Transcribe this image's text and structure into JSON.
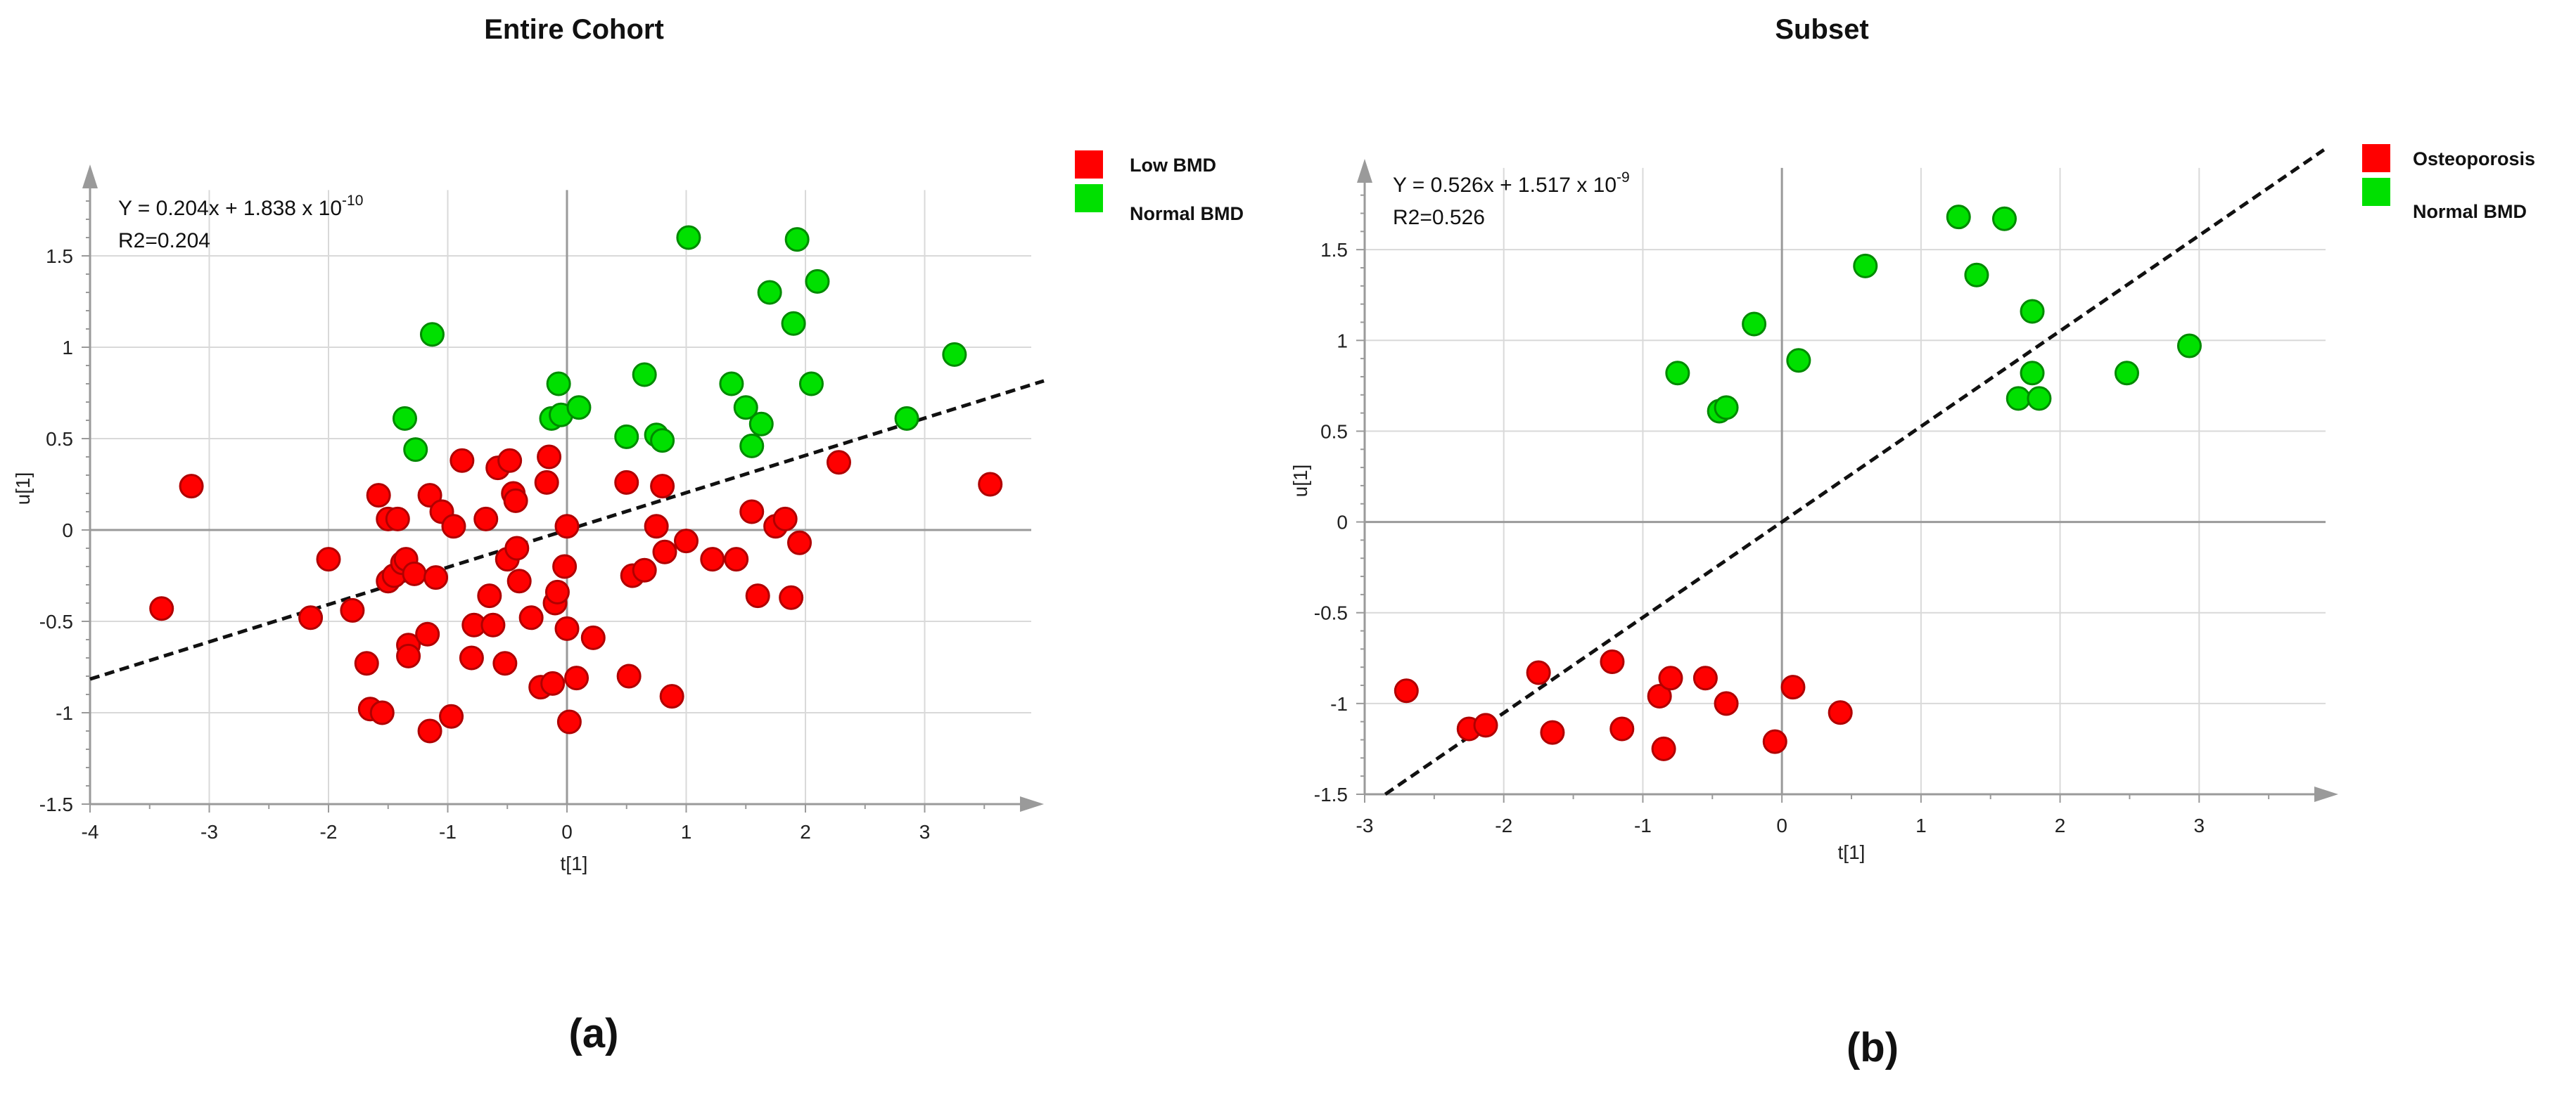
{
  "colors": {
    "low": "#ff0000",
    "low_edge": "#b00000",
    "normal": "#00e000",
    "normal_edge": "#008a00",
    "fit_line": "#111111",
    "grid": "#d9d9d9",
    "axis": "#9a9a9a"
  },
  "chart_data": [
    {
      "type": "scatter",
      "panel_label": "(a)",
      "title": "Entire Cohort",
      "xlabel": "t[1]",
      "ylabel": "u[1]",
      "xlim": [
        -4,
        4
      ],
      "ylim": [
        -1.5,
        2
      ],
      "xticks": [
        -4,
        -3,
        -2,
        -1,
        0,
        1,
        2,
        3
      ],
      "yticks": [
        -1.5,
        -1,
        -0.5,
        0,
        0.5,
        1,
        1.5
      ],
      "xtick_labels": [
        "-4",
        "-3",
        "-2",
        "-1",
        "0",
        "1",
        "2",
        "3"
      ],
      "ytick_labels": [
        "-1.5",
        "-1",
        "-0.5",
        "0",
        "0.5",
        "1",
        "1.5"
      ],
      "grid": true,
      "equation": {
        "prefix": "Y = 0.204x + 1.838  x 10",
        "exponent": "-10",
        "r2": "R2=0.204"
      },
      "fit": {
        "slope": 0.204,
        "intercept": 0
      },
      "legend": [
        {
          "label": "Low BMD",
          "color": "#ff0000"
        },
        {
          "label": "Normal BMD",
          "color": "#00e000"
        }
      ],
      "series": [
        {
          "name": "Low BMD",
          "color": "#ff0000",
          "points": [
            [
              -3.4,
              -0.43
            ],
            [
              -3.15,
              0.24
            ],
            [
              -2.15,
              -0.48
            ],
            [
              -2.0,
              -0.16
            ],
            [
              -1.8,
              -0.44
            ],
            [
              -1.68,
              -0.73
            ],
            [
              -1.65,
              -0.98
            ],
            [
              -1.58,
              0.19
            ],
            [
              -1.55,
              -1.0
            ],
            [
              -1.5,
              0.06
            ],
            [
              -1.5,
              -0.28
            ],
            [
              -1.45,
              -0.25
            ],
            [
              -1.42,
              0.06
            ],
            [
              -1.38,
              -0.18
            ],
            [
              -1.35,
              -0.16
            ],
            [
              -1.33,
              -0.63
            ],
            [
              -1.33,
              -0.69
            ],
            [
              -1.28,
              -0.24
            ],
            [
              -1.17,
              -0.57
            ],
            [
              -1.15,
              0.19
            ],
            [
              -1.15,
              -1.1
            ],
            [
              -1.1,
              -0.26
            ],
            [
              -1.05,
              0.1
            ],
            [
              -0.97,
              -1.02
            ],
            [
              -0.95,
              0.02
            ],
            [
              -0.88,
              0.38
            ],
            [
              -0.8,
              -0.7
            ],
            [
              -0.78,
              -0.52
            ],
            [
              -0.68,
              0.06
            ],
            [
              -0.65,
              -0.36
            ],
            [
              -0.62,
              -0.52
            ],
            [
              -0.58,
              0.34
            ],
            [
              -0.52,
              -0.73
            ],
            [
              -0.5,
              -0.16
            ],
            [
              -0.48,
              0.38
            ],
            [
              -0.45,
              0.2
            ],
            [
              -0.43,
              0.16
            ],
            [
              -0.42,
              -0.1
            ],
            [
              -0.4,
              -0.28
            ],
            [
              -0.3,
              -0.48
            ],
            [
              -0.22,
              -0.86
            ],
            [
              -0.17,
              0.26
            ],
            [
              -0.15,
              0.4
            ],
            [
              -0.12,
              -0.84
            ],
            [
              -0.1,
              -0.4
            ],
            [
              -0.08,
              -0.34
            ],
            [
              -0.02,
              -0.2
            ],
            [
              0.0,
              0.02
            ],
            [
              0.0,
              -0.54
            ],
            [
              0.02,
              -1.05
            ],
            [
              0.08,
              -0.81
            ],
            [
              0.22,
              -0.59
            ],
            [
              0.5,
              0.26
            ],
            [
              0.52,
              -0.8
            ],
            [
              0.55,
              -0.25
            ],
            [
              0.65,
              -0.22
            ],
            [
              0.75,
              0.02
            ],
            [
              0.8,
              0.24
            ],
            [
              0.82,
              -0.12
            ],
            [
              0.88,
              -0.91
            ],
            [
              1.0,
              -0.06
            ],
            [
              1.22,
              -0.16
            ],
            [
              1.42,
              -0.16
            ],
            [
              1.55,
              0.1
            ],
            [
              1.6,
              -0.36
            ],
            [
              1.75,
              0.02
            ],
            [
              1.83,
              0.06
            ],
            [
              1.88,
              -0.37
            ],
            [
              1.95,
              -0.07
            ],
            [
              2.28,
              0.37
            ],
            [
              3.55,
              0.25
            ]
          ]
        },
        {
          "name": "Normal BMD",
          "color": "#00e000",
          "points": [
            [
              -1.36,
              0.61
            ],
            [
              -1.27,
              0.44
            ],
            [
              -1.13,
              1.07
            ],
            [
              -0.13,
              0.61
            ],
            [
              -0.07,
              0.8
            ],
            [
              -0.05,
              0.63
            ],
            [
              0.1,
              0.67
            ],
            [
              0.5,
              0.51
            ],
            [
              0.65,
              0.85
            ],
            [
              0.75,
              0.52
            ],
            [
              0.8,
              0.49
            ],
            [
              1.02,
              1.6
            ],
            [
              1.38,
              0.8
            ],
            [
              1.5,
              0.67
            ],
            [
              1.55,
              0.46
            ],
            [
              1.63,
              0.58
            ],
            [
              1.7,
              1.3
            ],
            [
              1.9,
              1.13
            ],
            [
              1.93,
              1.59
            ],
            [
              2.05,
              0.8
            ],
            [
              2.1,
              1.36
            ],
            [
              2.85,
              0.61
            ],
            [
              3.25,
              0.96
            ]
          ]
        }
      ]
    },
    {
      "type": "scatter",
      "panel_label": "(b)",
      "title": "Subset",
      "xlabel": "t[1]",
      "ylabel": "u[1]",
      "xlim": [
        -3,
        4
      ],
      "ylim": [
        -1.5,
        2
      ],
      "xticks": [
        -3,
        -2,
        -1,
        0,
        1,
        2,
        3
      ],
      "yticks": [
        -1.5,
        -1,
        -0.5,
        0,
        0.5,
        1,
        1.5
      ],
      "xtick_labels": [
        "-3",
        "-2",
        "-1",
        "0",
        "1",
        "2",
        "3"
      ],
      "ytick_labels": [
        "-1.5",
        "-1",
        "-0.5",
        "0",
        "0.5",
        "1",
        "1.5"
      ],
      "grid": true,
      "equation": {
        "prefix": "Y = 0.526x + 1.517  x 10",
        "exponent": "-9",
        "r2": "R2=0.526"
      },
      "fit": {
        "slope": 0.526,
        "intercept": 0
      },
      "legend": [
        {
          "label": "Osteoporosis",
          "color": "#ff0000"
        },
        {
          "label": "Normal BMD",
          "color": "#00e000"
        }
      ],
      "series": [
        {
          "name": "Osteoporosis",
          "color": "#ff0000",
          "points": [
            [
              -2.7,
              -0.93
            ],
            [
              -2.25,
              -1.14
            ],
            [
              -2.13,
              -1.12
            ],
            [
              -1.75,
              -0.83
            ],
            [
              -1.65,
              -1.16
            ],
            [
              -1.22,
              -0.77
            ],
            [
              -1.15,
              -1.14
            ],
            [
              -0.88,
              -0.96
            ],
            [
              -0.85,
              -1.25
            ],
            [
              -0.8,
              -0.86
            ],
            [
              -0.55,
              -0.86
            ],
            [
              -0.4,
              -1.0
            ],
            [
              -0.05,
              -1.21
            ],
            [
              0.08,
              -0.91
            ],
            [
              0.42,
              -1.05
            ]
          ]
        },
        {
          "name": "Normal BMD",
          "color": "#00e000",
          "points": [
            [
              -0.75,
              0.82
            ],
            [
              -0.45,
              0.61
            ],
            [
              -0.4,
              0.63
            ],
            [
              -0.2,
              1.09
            ],
            [
              0.12,
              0.89
            ],
            [
              0.6,
              1.41
            ],
            [
              1.27,
              1.68
            ],
            [
              1.4,
              1.36
            ],
            [
              1.6,
              1.67
            ],
            [
              1.7,
              0.68
            ],
            [
              1.8,
              1.16
            ],
            [
              1.8,
              0.82
            ],
            [
              1.85,
              0.68
            ],
            [
              2.48,
              0.82
            ],
            [
              2.93,
              0.97
            ]
          ]
        }
      ]
    }
  ]
}
